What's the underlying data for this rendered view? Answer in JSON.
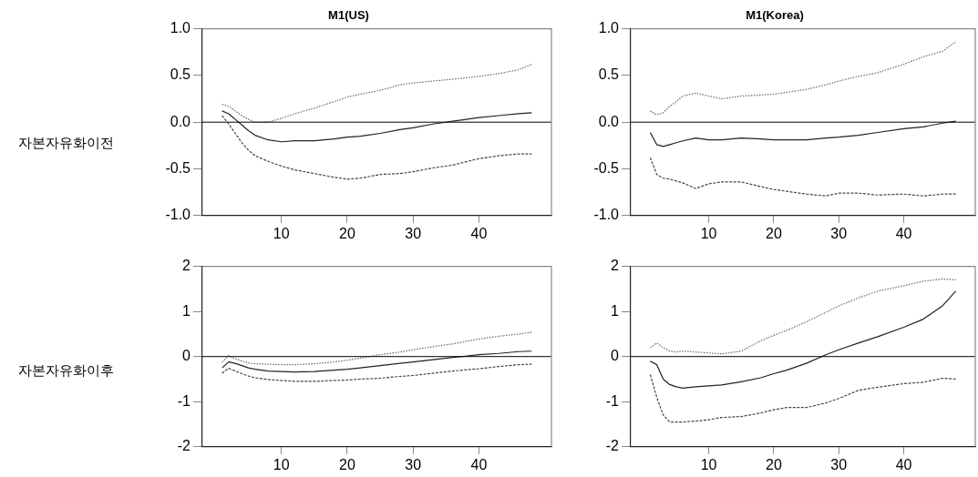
{
  "chart_data": [
    {
      "type": "line",
      "title": "M1(US)",
      "ylabel": "자본자유화이전",
      "x": [
        1,
        2,
        3,
        4,
        5,
        6,
        8,
        10,
        12,
        15,
        18,
        20,
        22,
        25,
        28,
        30,
        33,
        36,
        40,
        43,
        46,
        48
      ],
      "xlim": [
        -2,
        51
      ],
      "xticks": [
        10,
        20,
        30,
        40
      ],
      "ylim": [
        -1,
        1
      ],
      "yticks": [
        {
          "value": -1,
          "label": "-1.0"
        },
        {
          "value": -0.5,
          "label": "-0.5"
        },
        {
          "value": 0,
          "label": "0.0"
        },
        {
          "value": 0.5,
          "label": "0.5"
        },
        {
          "value": 1,
          "label": "1.0"
        }
      ],
      "grid": false,
      "legend": false,
      "marker": "none",
      "ref_lines": [
        {
          "axis": "y",
          "value": 0,
          "color": "#000000"
        }
      ],
      "series": [
        {
          "color": "#666666",
          "line_style": "dotted",
          "values": [
            0.19,
            0.17,
            0.12,
            0.07,
            0.03,
            0.0,
            0.0,
            0.04,
            0.09,
            0.15,
            0.22,
            0.27,
            0.3,
            0.34,
            0.4,
            0.42,
            0.44,
            0.46,
            0.49,
            0.52,
            0.56,
            0.62
          ]
        },
        {
          "color": "#222222",
          "line_style": "solid",
          "values": [
            0.12,
            0.09,
            0.03,
            -0.03,
            -0.09,
            -0.14,
            -0.19,
            -0.21,
            -0.2,
            -0.2,
            -0.18,
            -0.16,
            -0.15,
            -0.12,
            -0.08,
            -0.06,
            -0.02,
            0.01,
            0.05,
            0.07,
            0.09,
            0.1
          ]
        },
        {
          "color": "#444444",
          "line_style": "dashed",
          "values": [
            0.07,
            -0.02,
            -0.12,
            -0.22,
            -0.3,
            -0.36,
            -0.42,
            -0.47,
            -0.51,
            -0.55,
            -0.59,
            -0.61,
            -0.6,
            -0.56,
            -0.55,
            -0.53,
            -0.49,
            -0.46,
            -0.39,
            -0.36,
            -0.34,
            -0.34
          ]
        }
      ]
    },
    {
      "type": "line",
      "title": "M1(Korea)",
      "x": [
        1,
        2,
        3,
        4,
        5,
        6,
        8,
        10,
        12,
        15,
        18,
        20,
        22,
        25,
        28,
        30,
        33,
        36,
        40,
        43,
        46,
        48
      ],
      "xlim": [
        -2,
        51
      ],
      "xticks": [
        10,
        20,
        30,
        40
      ],
      "ylim": [
        -1,
        1
      ],
      "yticks": [
        {
          "value": -1,
          "label": "-1.0"
        },
        {
          "value": -0.5,
          "label": "-0.5"
        },
        {
          "value": 0,
          "label": "0.0"
        },
        {
          "value": 0.5,
          "label": "0.5"
        },
        {
          "value": 1,
          "label": "1.0"
        }
      ],
      "grid": false,
      "legend": false,
      "marker": "none",
      "ref_lines": [
        {
          "axis": "y",
          "value": 0,
          "color": "#000000"
        }
      ],
      "series": [
        {
          "color": "#666666",
          "line_style": "dotted",
          "values": [
            0.12,
            0.08,
            0.1,
            0.17,
            0.22,
            0.28,
            0.31,
            0.28,
            0.25,
            0.28,
            0.29,
            0.3,
            0.32,
            0.35,
            0.4,
            0.44,
            0.49,
            0.53,
            0.62,
            0.7,
            0.76,
            0.86
          ]
        },
        {
          "color": "#222222",
          "line_style": "solid",
          "values": [
            -0.11,
            -0.24,
            -0.26,
            -0.24,
            -0.22,
            -0.2,
            -0.17,
            -0.19,
            -0.19,
            -0.17,
            -0.18,
            -0.19,
            -0.19,
            -0.19,
            -0.17,
            -0.16,
            -0.14,
            -0.11,
            -0.07,
            -0.05,
            -0.01,
            0.01
          ]
        },
        {
          "color": "#444444",
          "line_style": "dashed",
          "values": [
            -0.38,
            -0.56,
            -0.6,
            -0.61,
            -0.63,
            -0.65,
            -0.71,
            -0.66,
            -0.64,
            -0.64,
            -0.69,
            -0.72,
            -0.74,
            -0.77,
            -0.79,
            -0.76,
            -0.76,
            -0.78,
            -0.77,
            -0.79,
            -0.77,
            -0.77
          ]
        }
      ]
    },
    {
      "type": "line",
      "ylabel": "자본자유화이후",
      "x": [
        1,
        2,
        3,
        4,
        5,
        6,
        8,
        10,
        12,
        15,
        18,
        20,
        22,
        25,
        28,
        30,
        33,
        36,
        40,
        43,
        46,
        48
      ],
      "xlim": [
        -2,
        51
      ],
      "xticks": [
        10,
        20,
        30,
        40
      ],
      "ylim": [
        -2,
        2
      ],
      "yticks": [
        -2,
        -1,
        0,
        1,
        2
      ],
      "grid": false,
      "legend": false,
      "marker": "none",
      "ref_lines": [
        {
          "axis": "y",
          "value": 0,
          "color": "#000000"
        }
      ],
      "series": [
        {
          "color": "#666666",
          "line_style": "dotted",
          "values": [
            -0.12,
            0.02,
            -0.05,
            -0.1,
            -0.14,
            -0.16,
            -0.17,
            -0.18,
            -0.18,
            -0.16,
            -0.12,
            -0.08,
            -0.03,
            0.04,
            0.1,
            0.15,
            0.22,
            0.28,
            0.39,
            0.45,
            0.5,
            0.54
          ]
        },
        {
          "color": "#222222",
          "line_style": "solid",
          "values": [
            -0.25,
            -0.12,
            -0.15,
            -0.2,
            -0.25,
            -0.28,
            -0.32,
            -0.33,
            -0.34,
            -0.33,
            -0.3,
            -0.28,
            -0.25,
            -0.2,
            -0.15,
            -0.12,
            -0.07,
            -0.02,
            0.04,
            0.07,
            0.11,
            0.12
          ]
        },
        {
          "color": "#444444",
          "line_style": "dashed",
          "values": [
            -0.37,
            -0.26,
            -0.32,
            -0.38,
            -0.43,
            -0.47,
            -0.51,
            -0.53,
            -0.55,
            -0.55,
            -0.53,
            -0.52,
            -0.5,
            -0.48,
            -0.44,
            -0.42,
            -0.37,
            -0.32,
            -0.27,
            -0.22,
            -0.18,
            -0.17
          ]
        }
      ]
    },
    {
      "type": "line",
      "x": [
        1,
        2,
        3,
        4,
        5,
        6,
        8,
        10,
        12,
        15,
        18,
        20,
        22,
        25,
        28,
        30,
        33,
        36,
        40,
        43,
        46,
        48
      ],
      "xlim": [
        -2,
        51
      ],
      "xticks": [
        10,
        20,
        30,
        40
      ],
      "ylim": [
        -2,
        2
      ],
      "yticks": [
        -2,
        -1,
        0,
        1,
        2
      ],
      "grid": false,
      "legend": false,
      "marker": "none",
      "ref_lines": [
        {
          "axis": "y",
          "value": 0,
          "color": "#000000"
        }
      ],
      "series": [
        {
          "color": "#666666",
          "line_style": "dotted",
          "values": [
            0.2,
            0.3,
            0.2,
            0.12,
            0.1,
            0.12,
            0.1,
            0.08,
            0.06,
            0.12,
            0.35,
            0.47,
            0.58,
            0.77,
            0.98,
            1.12,
            1.3,
            1.45,
            1.57,
            1.67,
            1.72,
            1.7
          ]
        },
        {
          "color": "#222222",
          "line_style": "solid",
          "values": [
            -0.1,
            -0.18,
            -0.5,
            -0.62,
            -0.67,
            -0.7,
            -0.67,
            -0.65,
            -0.63,
            -0.56,
            -0.47,
            -0.38,
            -0.3,
            -0.15,
            0.04,
            0.15,
            0.3,
            0.44,
            0.65,
            0.83,
            1.13,
            1.45
          ]
        },
        {
          "color": "#444444",
          "line_style": "dashed",
          "values": [
            -0.4,
            -0.9,
            -1.3,
            -1.45,
            -1.45,
            -1.45,
            -1.43,
            -1.4,
            -1.35,
            -1.33,
            -1.25,
            -1.18,
            -1.13,
            -1.13,
            -1.03,
            -0.93,
            -0.75,
            -0.68,
            -0.6,
            -0.57,
            -0.48,
            -0.5
          ]
        }
      ]
    }
  ]
}
